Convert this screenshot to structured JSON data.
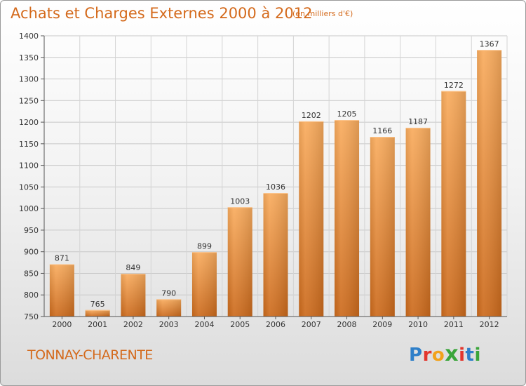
{
  "header": {
    "title": "Achats et Charges Externes 2000 à 2012",
    "subtitle": "(en milliers d'€)"
  },
  "footer": {
    "town": "TONNAY-CHARENTE",
    "logo_letters": [
      "P",
      "r",
      "o",
      "x",
      "i",
      "t",
      "i"
    ],
    "logo_colors": [
      "#2e7fc9",
      "#e3362d",
      "#f2a21b",
      "#3aa53a",
      "#e3362d",
      "#2e7fc9",
      "#3aa53a"
    ]
  },
  "colors": {
    "bar_light": "#f7a85a",
    "bar_dark": "#cf6f20",
    "text_accent": "#d46a1c"
  },
  "chart_data": {
    "type": "bar",
    "title": "Achats et Charges Externes 2000 à 2012",
    "subtitle": "(en milliers d'€)",
    "categories": [
      "2000",
      "2001",
      "2002",
      "2003",
      "2004",
      "2005",
      "2006",
      "2007",
      "2008",
      "2009",
      "2010",
      "2011",
      "2012"
    ],
    "values": [
      871,
      765,
      849,
      790,
      899,
      1003,
      1036,
      1202,
      1205,
      1166,
      1187,
      1272,
      1367
    ],
    "ylim": [
      750,
      1400
    ],
    "yticks": [
      750,
      800,
      850,
      900,
      950,
      1000,
      1050,
      1100,
      1150,
      1200,
      1250,
      1300,
      1350,
      1400
    ],
    "grid": true,
    "legend": "none"
  }
}
